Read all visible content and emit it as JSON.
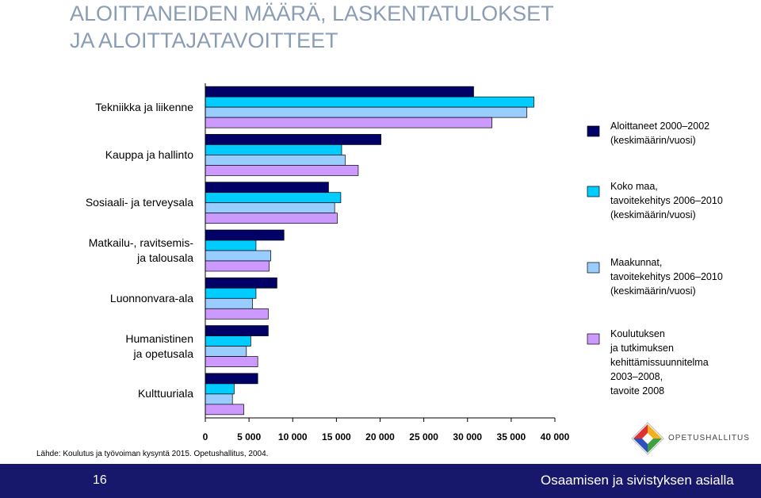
{
  "title": "ALOITTANEIDEN MÄÄRÄ, LASKENTATULOKSET\nJA ALOITTAJATAVOITTEET",
  "chart_data": {
    "type": "bar",
    "orientation": "horizontal",
    "categories": [
      "Tekniikka ja liikenne",
      "Kauppa ja hallinto",
      "Sosiaali- ja terveysala",
      "Matkailu-, ravitsemis-\nja talousala",
      "Luonnonvara-ala",
      "Humanistinen\nja opetusala",
      "Kulttuuriala"
    ],
    "series": [
      {
        "name": "Aloittaneet 2000–2002\n(keskimäärin/vuosi)",
        "color": "#000066",
        "values": [
          30700,
          20100,
          14100,
          9000,
          8200,
          7200,
          6000
        ]
      },
      {
        "name": "Koko maa,\ntavoitekehitys 2006–2010\n(keskimäärin/vuosi)",
        "color": "#00ccff",
        "values": [
          37600,
          15600,
          15500,
          5800,
          5800,
          5200,
          3300
        ]
      },
      {
        "name": "Maakunnat,\ntavoitekehitys 2006–2010\n(keskimäärin/vuosi)",
        "color": "#99ccff",
        "values": [
          36800,
          16000,
          14800,
          7500,
          5400,
          4700,
          3100
        ]
      },
      {
        "name": "Koulutuksen\nja tutkimuksen\nkehittämissuunnitelma\n2003–2008,\ntavoite 2008",
        "color": "#cc99ff",
        "values": [
          32800,
          17500,
          15100,
          7300,
          7200,
          6000,
          4400
        ]
      }
    ],
    "xlim": [
      0,
      40000
    ],
    "xticks": [
      0,
      {
        "value": 5000,
        "label": "5 000"
      },
      {
        "value": 10000,
        "label": "10 000"
      },
      {
        "value": 15000,
        "label": "15 000"
      },
      {
        "value": 20000,
        "label": "20 000"
      },
      {
        "value": 25000,
        "label": "25 000"
      },
      {
        "value": 30000,
        "label": "30 000"
      },
      {
        "value": 35000,
        "label": "35 000"
      },
      {
        "value": 40000,
        "label": "40 000"
      }
    ]
  },
  "source": "Lähde: Koulutus ja työvoiman kysyntä 2015. Opetushallitus, 2004.",
  "footer": {
    "page": "16",
    "slogan": "Osaamisen ja sivistyksen asialla",
    "logo": "OPETUSHALLITUS"
  }
}
